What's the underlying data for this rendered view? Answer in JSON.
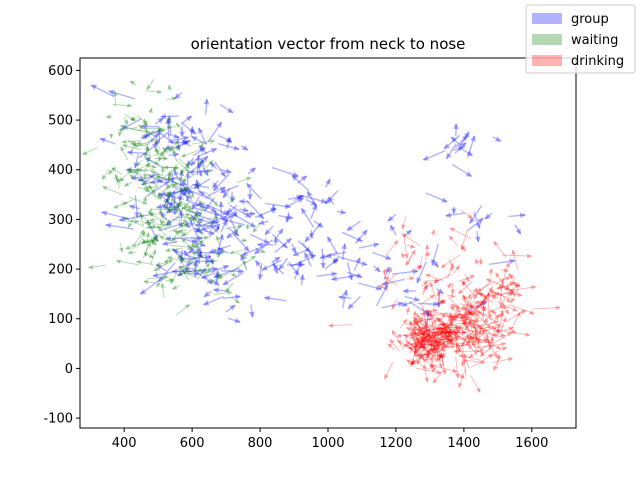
{
  "chart_data": {
    "type": "scatter",
    "title": "orientation vector from neck to nose",
    "xlabel": "",
    "ylabel": "",
    "xlim": [
      270,
      1730
    ],
    "ylim": [
      -120,
      625
    ],
    "x_ticks": [
      400,
      600,
      800,
      1000,
      1200,
      1400,
      1600
    ],
    "y_ticks": [
      -100,
      0,
      100,
      200,
      300,
      400,
      500,
      600
    ],
    "grid": false,
    "legend_position": "top-right",
    "series": [
      {
        "name": "group",
        "color": "#0000ff",
        "opacity": 0.3,
        "centers": [
          {
            "x": 540,
            "y": 430,
            "sx": 70,
            "sy": 60,
            "n": 60
          },
          {
            "x": 640,
            "y": 330,
            "sx": 80,
            "sy": 70,
            "n": 80
          },
          {
            "x": 620,
            "y": 200,
            "sx": 60,
            "sy": 40,
            "n": 30
          },
          {
            "x": 880,
            "y": 240,
            "sx": 130,
            "sy": 60,
            "n": 60
          },
          {
            "x": 820,
            "y": 330,
            "sx": 110,
            "sy": 40,
            "n": 30
          },
          {
            "x": 1200,
            "y": 200,
            "sx": 130,
            "sy": 50,
            "n": 30
          },
          {
            "x": 1390,
            "y": 440,
            "sx": 50,
            "sy": 25,
            "n": 12
          },
          {
            "x": 1450,
            "y": 300,
            "sx": 60,
            "sy": 50,
            "n": 12
          }
        ],
        "vector_length": [
          25,
          90
        ]
      },
      {
        "name": "waiting",
        "color": "#008000",
        "opacity": 0.3,
        "centers": [
          {
            "x": 520,
            "y": 340,
            "sx": 70,
            "sy": 80,
            "n": 160
          },
          {
            "x": 620,
            "y": 240,
            "sx": 80,
            "sy": 50,
            "n": 60
          },
          {
            "x": 460,
            "y": 480,
            "sx": 60,
            "sy": 60,
            "n": 30
          }
        ],
        "vector_length": [
          15,
          70
        ]
      },
      {
        "name": "drinking",
        "color": "#ff0000",
        "opacity": 0.3,
        "centers": [
          {
            "x": 1300,
            "y": 60,
            "sx": 40,
            "sy": 30,
            "n": 200
          },
          {
            "x": 1440,
            "y": 80,
            "sx": 40,
            "sy": 40,
            "n": 110
          },
          {
            "x": 1520,
            "y": 150,
            "sx": 25,
            "sy": 25,
            "n": 40
          },
          {
            "x": 1380,
            "y": 170,
            "sx": 70,
            "sy": 60,
            "n": 50
          },
          {
            "x": 1230,
            "y": 200,
            "sx": 40,
            "sy": 40,
            "n": 20
          }
        ],
        "vector_length": [
          15,
          90
        ]
      }
    ]
  }
}
